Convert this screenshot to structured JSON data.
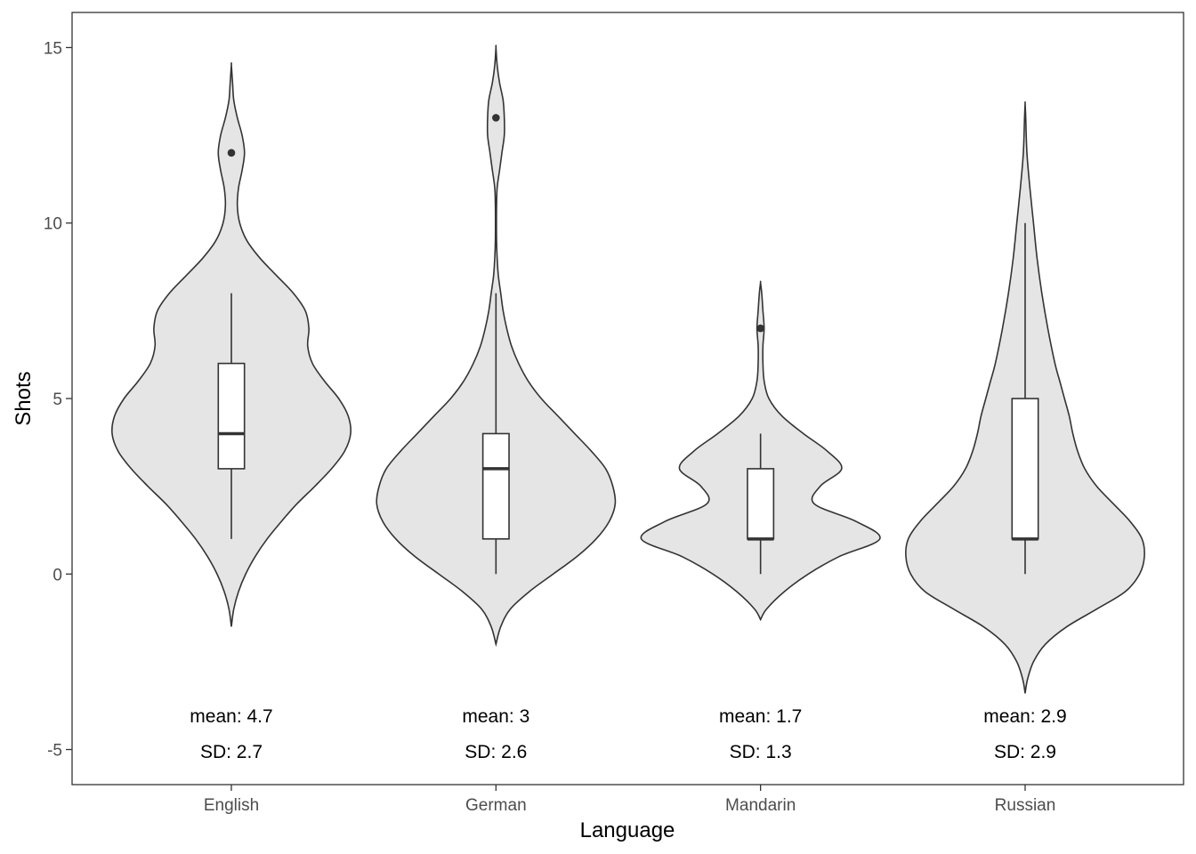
{
  "chart_data": {
    "type": "violin",
    "title": "",
    "xlabel": "Language",
    "ylabel": "Shots",
    "ylim": [
      -6,
      16
    ],
    "yticks": [
      -5,
      0,
      5,
      10,
      15
    ],
    "grid": false,
    "categories": [
      "English",
      "German",
      "Mandarin",
      "Russian"
    ],
    "groups": [
      {
        "name": "English",
        "boxplot": {
          "min": 1,
          "q1": 3,
          "median": 4,
          "q3": 6,
          "max": 8
        },
        "outliers": [
          12
        ],
        "violin_range": [
          -1.5,
          14.5
        ],
        "density": [
          [
            -1.5,
            0.0
          ],
          [
            -1.0,
            0.02
          ],
          [
            -0.5,
            0.06
          ],
          [
            0.0,
            0.12
          ],
          [
            0.5,
            0.2
          ],
          [
            1.0,
            0.3
          ],
          [
            1.5,
            0.42
          ],
          [
            2.0,
            0.55
          ],
          [
            2.5,
            0.7
          ],
          [
            3.0,
            0.84
          ],
          [
            3.5,
            0.95
          ],
          [
            4.0,
            1.0
          ],
          [
            4.5,
            0.98
          ],
          [
            5.0,
            0.9
          ],
          [
            5.5,
            0.78
          ],
          [
            6.0,
            0.68
          ],
          [
            6.5,
            0.64
          ],
          [
            7.0,
            0.65
          ],
          [
            7.5,
            0.62
          ],
          [
            8.0,
            0.52
          ],
          [
            8.5,
            0.38
          ],
          [
            9.0,
            0.24
          ],
          [
            9.5,
            0.13
          ],
          [
            10.0,
            0.07
          ],
          [
            10.5,
            0.05
          ],
          [
            11.0,
            0.06
          ],
          [
            11.5,
            0.09
          ],
          [
            12.0,
            0.11
          ],
          [
            12.5,
            0.09
          ],
          [
            13.0,
            0.05
          ],
          [
            13.5,
            0.02
          ],
          [
            14.0,
            0.01
          ],
          [
            14.5,
            0.0
          ]
        ],
        "mean_label": "mean: 4.7",
        "sd_label": "SD: 2.7"
      },
      {
        "name": "German",
        "boxplot": {
          "min": 0,
          "q1": 1,
          "median": 3,
          "q3": 4,
          "max": 8
        },
        "outliers": [
          13
        ],
        "violin_range": [
          -2,
          15
        ],
        "density": [
          [
            -2.0,
            0.0
          ],
          [
            -1.5,
            0.04
          ],
          [
            -1.0,
            0.12
          ],
          [
            -0.5,
            0.28
          ],
          [
            0.0,
            0.48
          ],
          [
            0.5,
            0.68
          ],
          [
            1.0,
            0.84
          ],
          [
            1.5,
            0.95
          ],
          [
            2.0,
            1.0
          ],
          [
            2.5,
            0.98
          ],
          [
            3.0,
            0.92
          ],
          [
            3.5,
            0.8
          ],
          [
            4.0,
            0.66
          ],
          [
            4.5,
            0.52
          ],
          [
            5.0,
            0.38
          ],
          [
            5.5,
            0.27
          ],
          [
            6.0,
            0.19
          ],
          [
            6.5,
            0.13
          ],
          [
            7.0,
            0.09
          ],
          [
            7.5,
            0.06
          ],
          [
            8.0,
            0.04
          ],
          [
            8.5,
            0.02
          ],
          [
            9.0,
            0.01
          ],
          [
            9.5,
            0.005
          ],
          [
            10.0,
            0.004
          ],
          [
            10.5,
            0.005
          ],
          [
            11.0,
            0.01
          ],
          [
            11.5,
            0.03
          ],
          [
            12.0,
            0.05
          ],
          [
            12.5,
            0.07
          ],
          [
            13.0,
            0.07
          ],
          [
            13.5,
            0.06
          ],
          [
            14.0,
            0.03
          ],
          [
            14.5,
            0.01
          ],
          [
            15.0,
            0.0
          ]
        ],
        "mean_label": "mean: 3",
        "sd_label": "SD: 2.6"
      },
      {
        "name": "Mandarin",
        "boxplot": {
          "min": 0,
          "q1": 1,
          "median": 1,
          "q3": 3,
          "max": 4
        },
        "outliers": [
          7
        ],
        "violin_range": [
          -1.3,
          8.3
        ],
        "density": [
          [
            -1.3,
            0.0
          ],
          [
            -1.0,
            0.05
          ],
          [
            -0.5,
            0.2
          ],
          [
            0.0,
            0.4
          ],
          [
            0.5,
            0.66
          ],
          [
            1.0,
            1.0
          ],
          [
            1.5,
            0.8
          ],
          [
            2.0,
            0.45
          ],
          [
            2.5,
            0.5
          ],
          [
            3.0,
            0.68
          ],
          [
            3.5,
            0.56
          ],
          [
            4.0,
            0.36
          ],
          [
            4.5,
            0.18
          ],
          [
            5.0,
            0.07
          ],
          [
            5.5,
            0.03
          ],
          [
            6.0,
            0.02
          ],
          [
            6.5,
            0.02
          ],
          [
            7.0,
            0.03
          ],
          [
            7.5,
            0.02
          ],
          [
            8.0,
            0.01
          ],
          [
            8.3,
            0.0
          ]
        ],
        "mean_label": "mean: 1.7",
        "sd_label": "SD: 1.3"
      },
      {
        "name": "Russian",
        "boxplot": {
          "min": 0,
          "q1": 1,
          "median": 1,
          "q3": 5,
          "max": 10
        },
        "outliers": [],
        "violin_range": [
          -3.4,
          13.4
        ],
        "density": [
          [
            -3.4,
            0.0
          ],
          [
            -3.0,
            0.02
          ],
          [
            -2.5,
            0.07
          ],
          [
            -2.0,
            0.17
          ],
          [
            -1.5,
            0.35
          ],
          [
            -1.0,
            0.6
          ],
          [
            -0.5,
            0.84
          ],
          [
            0.0,
            0.96
          ],
          [
            0.5,
            1.0
          ],
          [
            1.0,
            0.98
          ],
          [
            1.5,
            0.88
          ],
          [
            2.0,
            0.74
          ],
          [
            2.5,
            0.6
          ],
          [
            3.0,
            0.5
          ],
          [
            3.5,
            0.44
          ],
          [
            4.0,
            0.4
          ],
          [
            4.5,
            0.37
          ],
          [
            5.0,
            0.33
          ],
          [
            5.5,
            0.29
          ],
          [
            6.0,
            0.25
          ],
          [
            7.0,
            0.19
          ],
          [
            8.0,
            0.14
          ],
          [
            9.0,
            0.1
          ],
          [
            10.0,
            0.07
          ],
          [
            11.0,
            0.04
          ],
          [
            12.0,
            0.015
          ],
          [
            13.0,
            0.005
          ],
          [
            13.4,
            0.0
          ]
        ],
        "mean_label": "mean: 2.9",
        "sd_label": "SD: 2.9"
      }
    ],
    "colors": {
      "violin_fill": "#e5e5e5",
      "violin_stroke": "#333333",
      "box_fill": "#ffffff",
      "box_stroke": "#333333",
      "outlier": "#333333"
    }
  }
}
